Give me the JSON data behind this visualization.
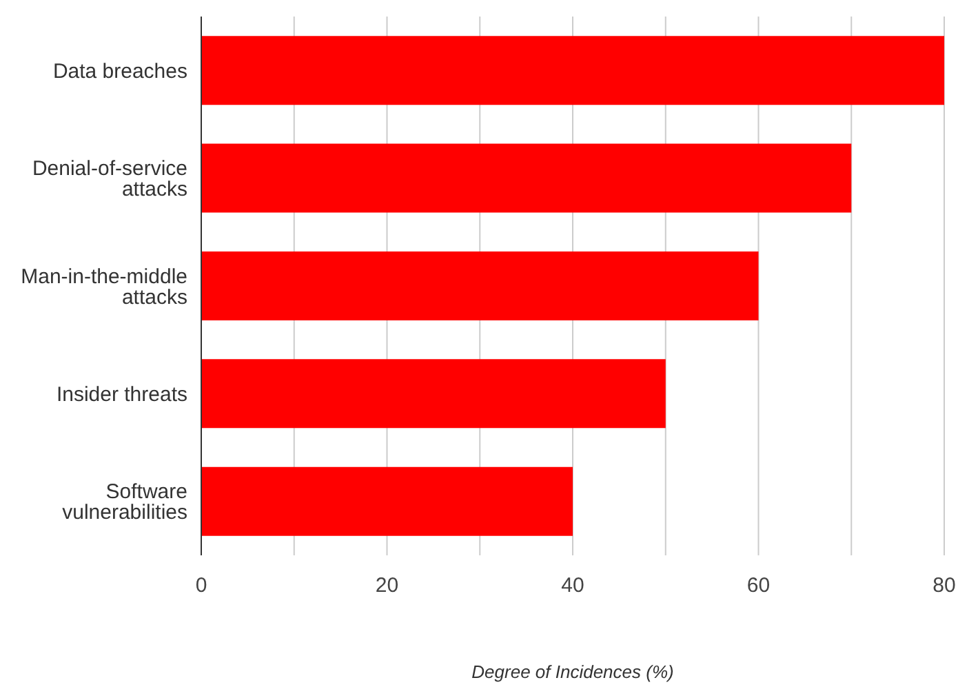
{
  "chart_data": {
    "type": "bar",
    "orientation": "horizontal",
    "xlabel": "Degree of Incidences (%)",
    "categories": [
      "Data breaches",
      "Denial-of-service attacks",
      "Man-in-the-middle attacks",
      "Insider threats",
      "Software vulnerabilities"
    ],
    "values": [
      80,
      70,
      60,
      50,
      40
    ],
    "color": "#ff0000",
    "xlim": [
      0,
      80
    ],
    "xticks": [
      0,
      {
        "value": 10,
        "label": null
      },
      20,
      {
        "value": 30,
        "label": null
      },
      40,
      {
        "value": 50,
        "label": null
      },
      60,
      {
        "value": 70,
        "label": null
      },
      80
    ],
    "grid": "x"
  }
}
